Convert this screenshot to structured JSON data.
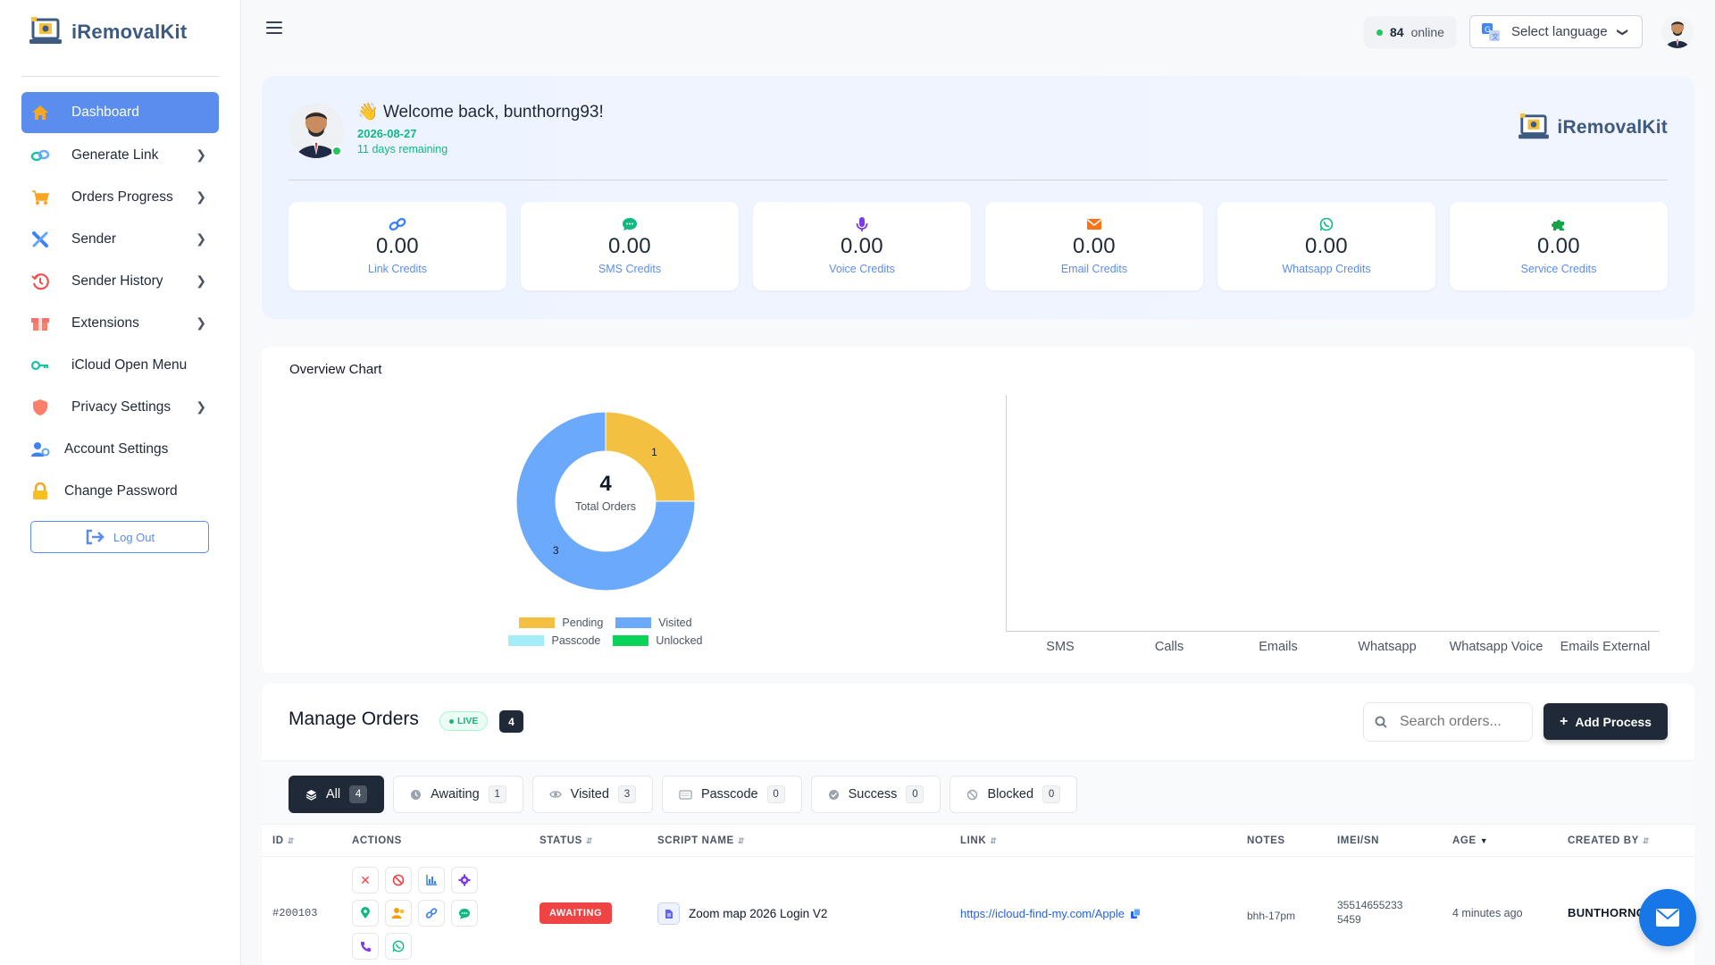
{
  "brand": {
    "name": "iRemovalKit"
  },
  "sidebar": {
    "items": [
      {
        "label": "Dashboard",
        "icon": "home-icon",
        "active": true
      },
      {
        "label": "Generate Link",
        "icon": "link-icon",
        "has_submenu": true
      },
      {
        "label": "Orders Progress",
        "icon": "cart-icon",
        "has_submenu": true
      },
      {
        "label": "Sender",
        "icon": "tools-icon",
        "has_submenu": true
      },
      {
        "label": "Sender History",
        "icon": "history-icon",
        "has_submenu": true
      },
      {
        "label": "Extensions",
        "icon": "box-icon",
        "has_submenu": true
      },
      {
        "label": "iCloud Open Menu",
        "icon": "cloud-key-icon"
      },
      {
        "label": "Privacy Settings",
        "icon": "shield-icon",
        "has_submenu": true
      },
      {
        "label": "Account Settings",
        "icon": "user-gear-icon"
      },
      {
        "label": "Change Password",
        "icon": "lock-icon"
      }
    ],
    "logout_label": "Log Out"
  },
  "topbar": {
    "online_count": "84",
    "online_label": "online",
    "language_label": "Select language"
  },
  "welcome": {
    "title": "Welcome back, bunthorng93!",
    "date": "2026-08-27",
    "remaining": "11 days remaining"
  },
  "credits": [
    {
      "value": "0.00",
      "label": "Link Credits",
      "icon": "link-icon",
      "color": "#3b82f6"
    },
    {
      "value": "0.00",
      "label": "SMS Credits",
      "icon": "chat-icon",
      "color": "#10b981"
    },
    {
      "value": "0.00",
      "label": "Voice Credits",
      "icon": "microphone-icon",
      "color": "#7c3aed"
    },
    {
      "value": "0.00",
      "label": "Email Credits",
      "icon": "envelope-icon",
      "color": "#f97316"
    },
    {
      "value": "0.00",
      "label": "Whatsapp Credits",
      "icon": "whatsapp-icon",
      "color": "#10b981"
    },
    {
      "value": "0.00",
      "label": "Service Credits",
      "icon": "puzzle-icon",
      "color": "#16a34a"
    }
  ],
  "overview": {
    "title": "Overview Chart"
  },
  "chart_data": [
    {
      "type": "pie",
      "total": 4,
      "total_label": "Total Orders",
      "categories": [
        "Pending",
        "Visited",
        "Passcode",
        "Unlocked"
      ],
      "values": [
        1,
        3,
        0,
        0
      ],
      "colors": [
        "#f4c041",
        "#6aa9fb",
        "#a5ecfb",
        "#0ad35a"
      ],
      "legend": "bottom"
    },
    {
      "type": "bar",
      "categories": [
        "SMS",
        "Calls",
        "Emails",
        "Whatsapp",
        "Whatsapp Voice",
        "Emails External"
      ],
      "values": [
        0,
        0,
        0,
        0,
        0,
        0
      ],
      "grid": false
    }
  ],
  "orders": {
    "title": "Manage Orders",
    "live_label": "LIVE",
    "count": "4",
    "search_placeholder": "Search orders...",
    "add_label": "Add Process",
    "tabs": [
      {
        "label": "All",
        "count": "4",
        "icon": "layers-icon",
        "active": true
      },
      {
        "label": "Awaiting",
        "count": "1",
        "icon": "clock-icon"
      },
      {
        "label": "Visited",
        "count": "3",
        "icon": "eye-icon"
      },
      {
        "label": "Passcode",
        "count": "0",
        "icon": "keyboard-icon"
      },
      {
        "label": "Success",
        "count": "0",
        "icon": "check-circle-icon"
      },
      {
        "label": "Blocked",
        "count": "0",
        "icon": "ban-icon"
      }
    ],
    "columns": [
      "ID",
      "ACTIONS",
      "STATUS",
      "SCRIPT NAME",
      "LINK",
      "NOTES",
      "IMEI/SN",
      "AGE",
      "CREATED BY"
    ],
    "rows": [
      {
        "id": "#200103",
        "status": "AWAITING",
        "script": "Zoom map 2026 Login V2",
        "link": "https://icloud-find-my.com/Apple",
        "notes": "bhh-17pm",
        "imei_line1": "35514655233",
        "imei_line2": "5459",
        "age": "4 minutes ago",
        "created_by": "BUNTHORNG"
      }
    ]
  }
}
